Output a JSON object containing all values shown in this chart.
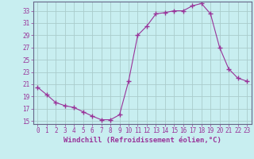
{
  "x": [
    0,
    1,
    2,
    3,
    4,
    5,
    6,
    7,
    8,
    9,
    10,
    11,
    12,
    13,
    14,
    15,
    16,
    17,
    18,
    19,
    20,
    21,
    22,
    23
  ],
  "y": [
    20.5,
    19.3,
    18.0,
    17.5,
    17.2,
    16.5,
    15.8,
    15.2,
    15.2,
    16.0,
    21.5,
    29.0,
    30.5,
    32.5,
    32.7,
    33.0,
    33.0,
    33.8,
    34.2,
    32.5,
    27.0,
    23.5,
    22.0,
    21.5
  ],
  "line_color": "#993399",
  "marker": "+",
  "marker_size": 4,
  "bg_color": "#c8eef0",
  "grid_color": "#aacccc",
  "xlabel": "Windchill (Refroidissement éolien,°C)",
  "xlim": [
    -0.5,
    23.5
  ],
  "ylim": [
    14.5,
    34.5
  ],
  "yticks": [
    15,
    17,
    19,
    21,
    23,
    25,
    27,
    29,
    31,
    33
  ],
  "xticks": [
    0,
    1,
    2,
    3,
    4,
    5,
    6,
    7,
    8,
    9,
    10,
    11,
    12,
    13,
    14,
    15,
    16,
    17,
    18,
    19,
    20,
    21,
    22,
    23
  ],
  "tick_color": "#993399",
  "spine_color": "#666688",
  "label_fontsize": 6.5,
  "tick_fontsize": 5.5
}
